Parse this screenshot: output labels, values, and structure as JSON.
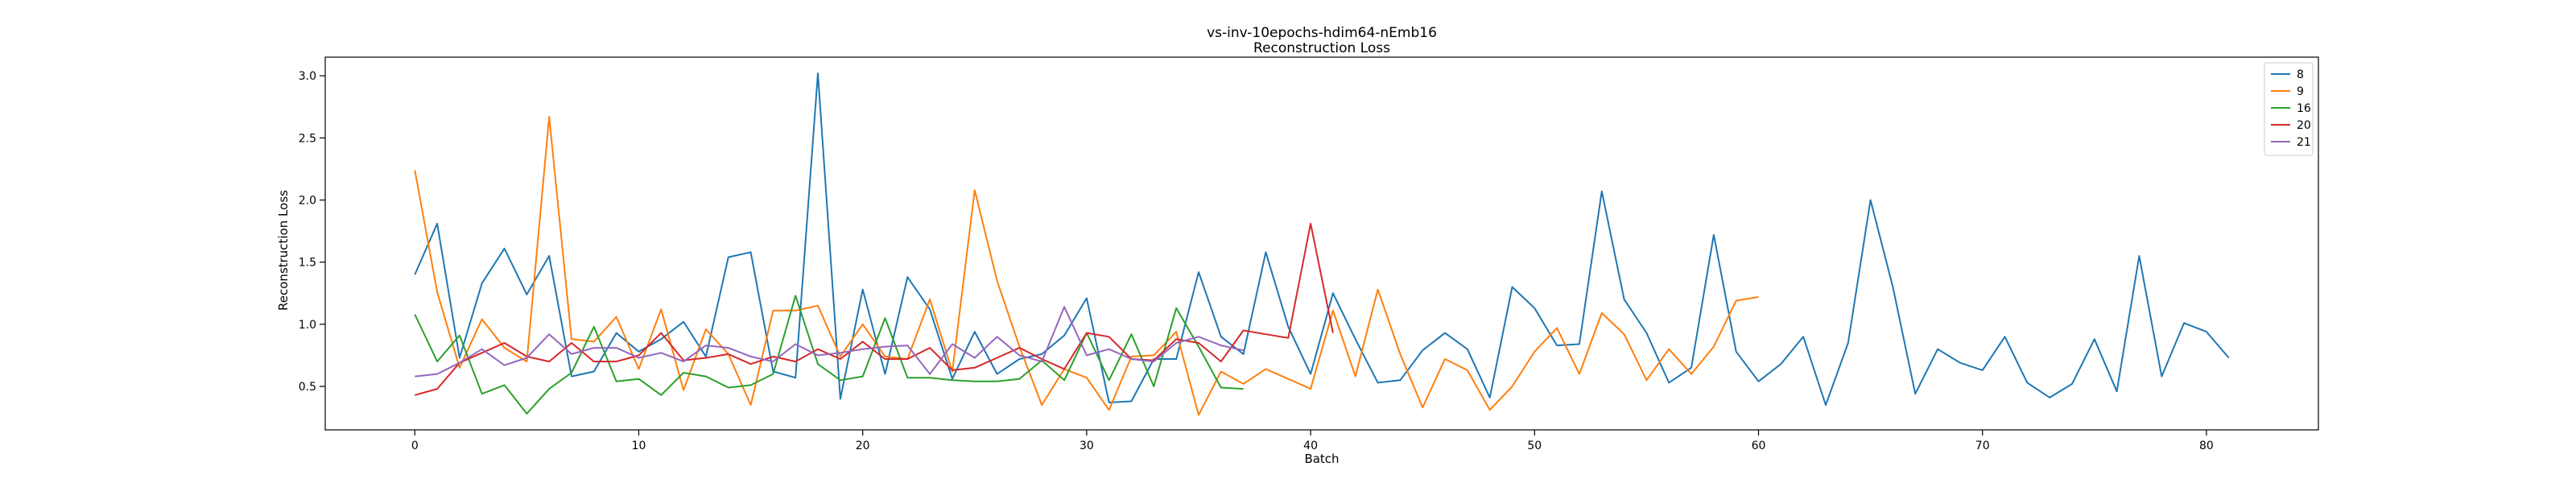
{
  "chart_data": {
    "type": "line",
    "title": "vs-inv-10epochs-hdim64-nEmb16",
    "subtitle": "Reconstruction Loss",
    "xlabel": "Batch",
    "ylabel": "Reconstruction Loss",
    "xlim": [
      -4,
      85
    ],
    "ylim": [
      0.15,
      3.15
    ],
    "xticks": [
      0,
      10,
      20,
      30,
      40,
      50,
      60,
      70,
      80
    ],
    "yticks": [
      0.5,
      1.0,
      1.5,
      2.0,
      2.5,
      3.0
    ],
    "ytick_labels": [
      "0.5",
      "1.0",
      "1.5",
      "2.0",
      "2.5",
      "3.0"
    ],
    "grid": false,
    "legend_position": "top-right",
    "series": [
      {
        "name": "8",
        "color": "#1f77b4",
        "values": [
          1.4,
          1.81,
          0.73,
          1.33,
          1.61,
          1.24,
          1.55,
          0.58,
          0.62,
          0.93,
          0.78,
          0.88,
          1.02,
          0.74,
          1.54,
          1.58,
          0.62,
          0.57,
          3.02,
          0.4,
          1.28,
          0.6,
          1.38,
          1.12,
          0.56,
          0.94,
          0.6,
          0.72,
          0.76,
          0.91,
          1.21,
          0.37,
          0.38,
          0.72,
          0.72,
          1.42,
          0.9,
          0.76,
          1.58,
          0.98,
          0.6,
          1.25,
          0.88,
          0.53,
          0.55,
          0.79,
          0.93,
          0.8,
          0.41,
          1.3,
          1.13,
          0.83,
          0.84,
          2.07,
          1.2,
          0.93,
          0.53,
          0.65,
          1.72,
          0.78,
          0.54,
          0.68,
          0.9,
          0.35,
          0.85,
          2.0,
          1.3,
          0.44,
          0.8,
          0.69,
          0.63,
          0.9,
          0.53,
          0.41,
          0.52,
          0.88,
          0.46,
          1.55,
          0.58,
          1.01,
          0.94,
          0.73
        ]
      },
      {
        "name": "9",
        "color": "#ff7f0e",
        "values": [
          2.24,
          1.26,
          0.65,
          1.04,
          0.81,
          0.7,
          2.67,
          0.88,
          0.86,
          1.06,
          0.64,
          1.12,
          0.47,
          0.96,
          0.76,
          0.35,
          1.11,
          1.11,
          1.15,
          0.74,
          1.0,
          0.74,
          0.72,
          1.2,
          0.62,
          2.08,
          1.35,
          0.82,
          0.35,
          0.64,
          0.57,
          0.31,
          0.74,
          0.75,
          0.94,
          0.27,
          0.62,
          0.52,
          0.64,
          0.56,
          0.48,
          1.11,
          0.58,
          1.28,
          0.76,
          0.33,
          0.72,
          0.63,
          0.31,
          0.5,
          0.78,
          0.97,
          0.6,
          1.09,
          0.92,
          0.55,
          0.8,
          0.6,
          0.82,
          1.19,
          1.22
        ]
      },
      {
        "name": "16",
        "color": "#2ca02c",
        "values": [
          1.08,
          0.7,
          0.91,
          0.44,
          0.51,
          0.28,
          0.48,
          0.61,
          0.98,
          0.54,
          0.56,
          0.43,
          0.61,
          0.58,
          0.49,
          0.51,
          0.6,
          1.23,
          0.68,
          0.55,
          0.58,
          1.05,
          0.57,
          0.57,
          0.55,
          0.54,
          0.54,
          0.56,
          0.71,
          0.55,
          0.93,
          0.55,
          0.92,
          0.5,
          1.13,
          0.82,
          0.49,
          0.48
        ]
      },
      {
        "name": "20",
        "color": "#d62728",
        "values": [
          0.43,
          0.48,
          0.69,
          0.77,
          0.85,
          0.74,
          0.7,
          0.85,
          0.7,
          0.7,
          0.75,
          0.93,
          0.71,
          0.73,
          0.76,
          0.68,
          0.74,
          0.7,
          0.8,
          0.72,
          0.86,
          0.72,
          0.72,
          0.81,
          0.63,
          0.65,
          0.73,
          0.81,
          0.72,
          0.64,
          0.93,
          0.9,
          0.72,
          0.71,
          0.88,
          0.85,
          0.7,
          0.95,
          0.92,
          0.89,
          1.81,
          0.93
        ]
      },
      {
        "name": "21",
        "color": "#9467bd",
        "values": [
          0.58,
          0.6,
          0.69,
          0.8,
          0.67,
          0.73,
          0.92,
          0.76,
          0.81,
          0.81,
          0.73,
          0.77,
          0.7,
          0.83,
          0.81,
          0.74,
          0.7,
          0.84,
          0.75,
          0.77,
          0.8,
          0.82,
          0.83,
          0.6,
          0.84,
          0.73,
          0.9,
          0.75,
          0.7,
          1.14,
          0.75,
          0.8,
          0.72,
          0.7,
          0.85,
          0.9,
          0.83,
          0.79
        ]
      }
    ]
  }
}
